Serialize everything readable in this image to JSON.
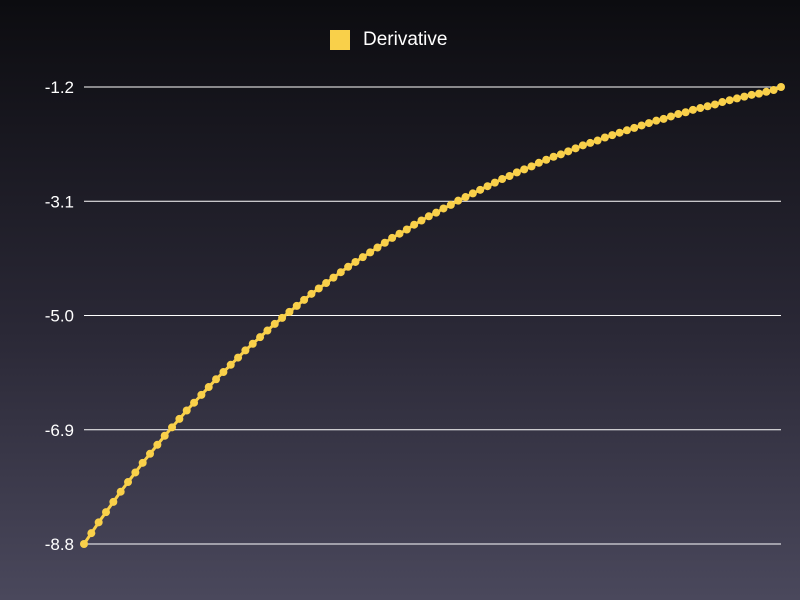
{
  "chart_data": {
    "type": "line",
    "legend": {
      "position": "top-center"
    },
    "grid": true,
    "ylim": [
      -8.8,
      -1.2
    ],
    "yticks": [
      "-1.2",
      "-3.1",
      "-5.0",
      "-6.9",
      "-8.8"
    ],
    "xlabel": "",
    "ylabel": "",
    "series": [
      {
        "name": "Derivative",
        "color": "#f9d04a",
        "values": [
          -8.8,
          -8.62,
          -8.44,
          -8.27,
          -8.1,
          -7.93,
          -7.77,
          -7.61,
          -7.45,
          -7.3,
          -7.15,
          -7.0,
          -6.86,
          -6.72,
          -6.58,
          -6.45,
          -6.32,
          -6.19,
          -6.06,
          -5.94,
          -5.82,
          -5.7,
          -5.58,
          -5.47,
          -5.36,
          -5.25,
          -5.14,
          -5.04,
          -4.94,
          -4.84,
          -4.74,
          -4.64,
          -4.55,
          -4.46,
          -4.37,
          -4.28,
          -4.19,
          -4.11,
          -4.03,
          -3.95,
          -3.87,
          -3.79,
          -3.71,
          -3.64,
          -3.57,
          -3.49,
          -3.42,
          -3.35,
          -3.29,
          -3.22,
          -3.16,
          -3.09,
          -3.03,
          -2.97,
          -2.91,
          -2.85,
          -2.79,
          -2.73,
          -2.68,
          -2.62,
          -2.57,
          -2.52,
          -2.46,
          -2.41,
          -2.36,
          -2.32,
          -2.27,
          -2.22,
          -2.17,
          -2.13,
          -2.09,
          -2.04,
          -2.0,
          -1.96,
          -1.92,
          -1.88,
          -1.84,
          -1.8,
          -1.76,
          -1.73,
          -1.69,
          -1.65,
          -1.62,
          -1.58,
          -1.55,
          -1.52,
          -1.49,
          -1.45,
          -1.42,
          -1.39,
          -1.36,
          -1.33,
          -1.31,
          -1.28,
          -1.25,
          -1.2
        ]
      }
    ]
  }
}
